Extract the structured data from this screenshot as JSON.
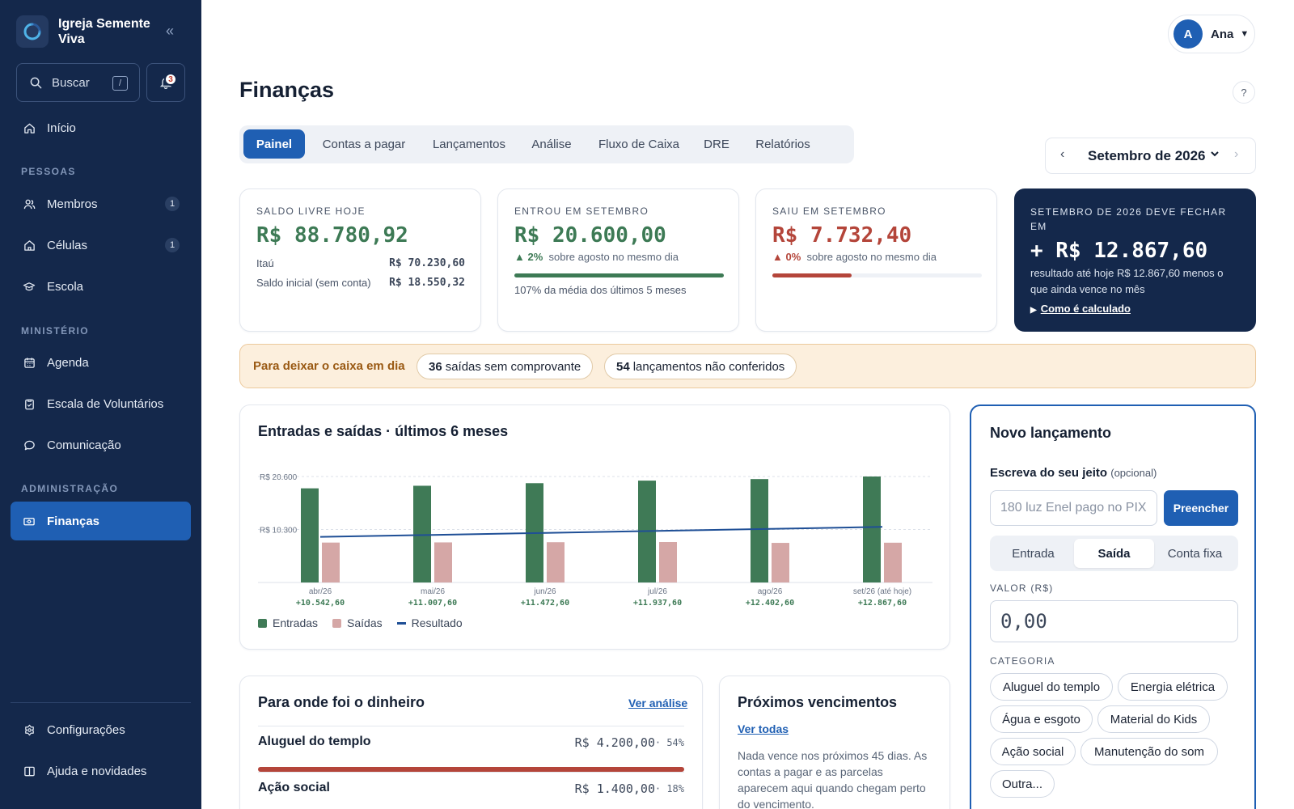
{
  "sidebar": {
    "brand": "Igreja Semente Viva",
    "search_label": "Buscar",
    "search_shortcut": "/",
    "notifications_count": "3",
    "home": "Início",
    "section_people": "PESSOAS",
    "members": "Membros",
    "members_count": "1",
    "cells": "Células",
    "cells_count": "1",
    "school": "Escola",
    "section_ministry": "MINISTÉRIO",
    "agenda": "Agenda",
    "volunteers": "Escala de Voluntários",
    "communication": "Comunicação",
    "section_admin": "ADMINISTRAÇÃO",
    "finances": "Finanças",
    "settings": "Configurações",
    "help": "Ajuda e novidades"
  },
  "header": {
    "user_initial": "A",
    "user_name": "Ana",
    "page_title": "Finanças",
    "help": "?",
    "month": "Setembro de 2026"
  },
  "tabs": [
    "Painel",
    "Contas a pagar",
    "Lançamentos",
    "Análise",
    "Fluxo de Caixa",
    "DRE",
    "Relatórios"
  ],
  "kpis": {
    "free_balance": {
      "label": "SALDO LIVRE HOJE",
      "value": "R$ 88.780,92",
      "rows": [
        {
          "name": "Itaú",
          "amount": "R$ 70.230,60"
        },
        {
          "name": "Saldo inicial (sem conta)",
          "amount": "R$ 18.550,32"
        }
      ]
    },
    "income": {
      "label": "ENTROU EM SETEMBRO",
      "value": "R$ 20.600,00",
      "delta": "▲ 2%",
      "delta_text": "sobre agosto no mesmo dia",
      "progress": 1.0,
      "note": "107% da média dos últimos 5 meses"
    },
    "expenses": {
      "label": "SAIU EM SETEMBRO",
      "value": "R$ 7.732,40",
      "delta": "▲ 0%",
      "delta_text": "sobre agosto no mesmo dia",
      "progress": 0.38
    },
    "forecast": {
      "label": "SETEMBRO DE 2026 DEVE FECHAR EM",
      "value": "+ R$ 12.867,60",
      "desc": "resultado até hoje R$ 12.867,60 menos o que ainda vence no mês",
      "how": "Como é calculado"
    }
  },
  "alert": {
    "title": "Para deixar o caixa em dia",
    "chip1_count": "36",
    "chip1_text": "saídas sem comprovante",
    "chip2_count": "54",
    "chip2_text": "lançamentos não conferidos"
  },
  "chart_title": "Entradas e saídas · últimos 6 meses",
  "chart_data": {
    "type": "bar",
    "categories": [
      "abr/26",
      "mai/26",
      "jun/26",
      "jul/26",
      "ago/26",
      "set/26 (até hoje)"
    ],
    "result_labels": [
      "+10.542,60",
      "+11.007,60",
      "+11.472,60",
      "+11.937,60",
      "+12.402,60",
      "+12.867,60"
    ],
    "series": [
      {
        "name": "Entradas",
        "color": "#3f7a56",
        "values": [
          18300,
          18800,
          19300,
          19800,
          20100,
          20600
        ]
      },
      {
        "name": "Saídas",
        "color": "#d5a7a6",
        "values": [
          7757,
          7792,
          7827,
          7862,
          7697,
          7732
        ]
      },
      {
        "name": "Resultado",
        "color": "#1f4f96",
        "type": "line",
        "values": [
          10542.6,
          11007.6,
          11472.6,
          11937.6,
          12402.6,
          12867.6
        ]
      }
    ],
    "yticks": [
      {
        "value": 20600,
        "label": "R$ 20.600"
      },
      {
        "value": 10300,
        "label": "R$ 10.300"
      }
    ],
    "ylim": [
      0,
      21500
    ],
    "grid": true,
    "legend_position": "bottom-left"
  },
  "spending": {
    "title": "Para onde foi o dinheiro",
    "link": "Ver análise",
    "items": [
      {
        "name": "Aluguel do templo",
        "amount": "R$ 4.200,00",
        "pct": "· 54%",
        "share": 1.0
      },
      {
        "name": "Ação social",
        "amount": "R$ 1.400,00",
        "pct": "· 18%",
        "share": 0.333
      }
    ]
  },
  "upcoming": {
    "title": "Próximos vencimentos",
    "link": "Ver todas",
    "text": "Nada vence nos próximos 45 dias. As contas a pagar e as parcelas aparecem aqui quando chegam perto do vencimento."
  },
  "form": {
    "title": "Novo lançamento",
    "free_label": "Escreva do seu jeito",
    "free_optional": "(opcional)",
    "free_placeholder": "180 luz Enel pago no PIX",
    "fill_button": "Preencher",
    "types": [
      "Entrada",
      "Saída",
      "Conta fixa"
    ],
    "value_label": "VALOR (R$)",
    "value": "0,00",
    "category_label": "CATEGORIA",
    "categories": [
      "Aluguel do templo",
      "Energia elétrica",
      "Água e esgoto",
      "Material do Kids",
      "Ação social",
      "Manutenção do som",
      "Outra..."
    ]
  }
}
